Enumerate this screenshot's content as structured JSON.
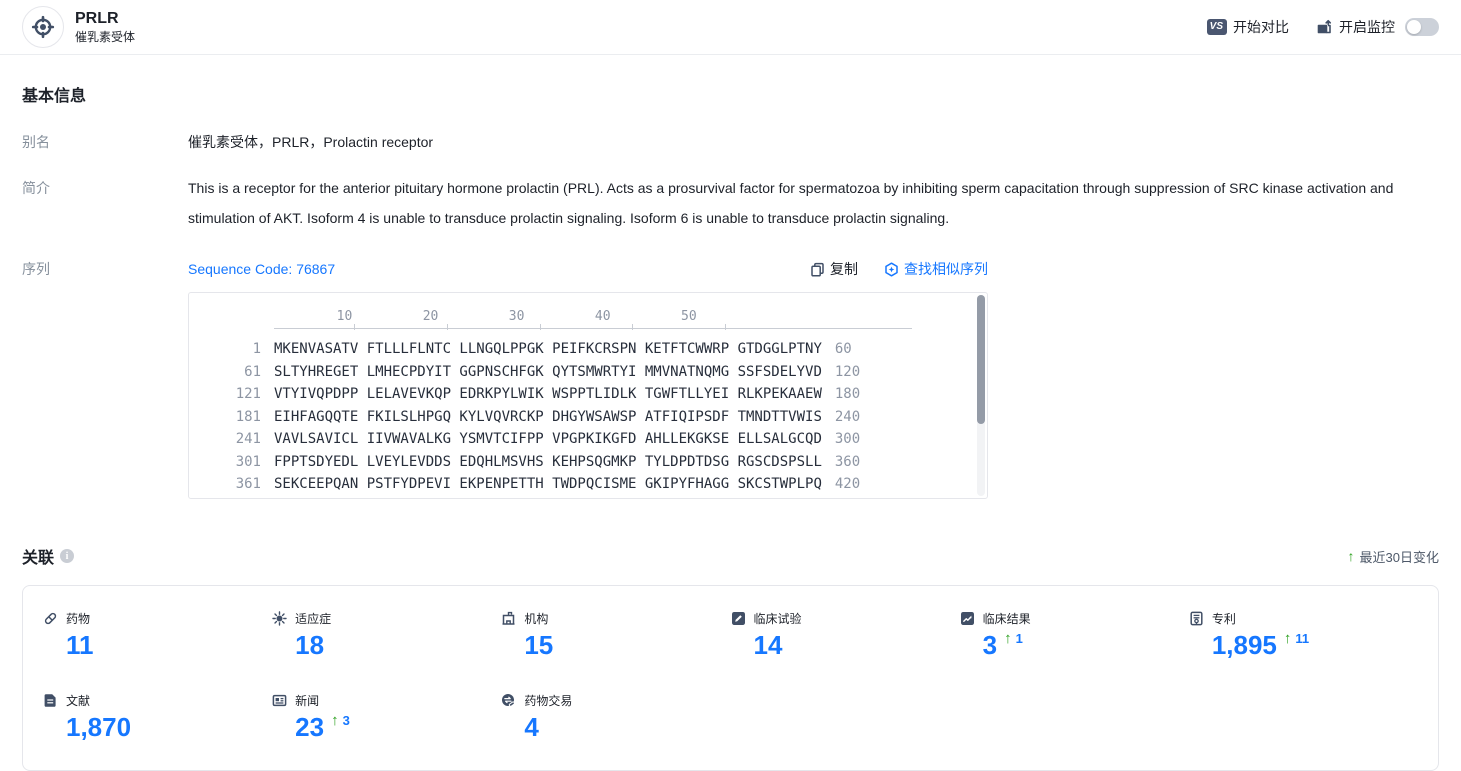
{
  "colors": {
    "accent_blue": "#1677ff",
    "navy": "#414f66",
    "green": "#2ea121",
    "badge_bg": "#4a5670"
  },
  "header": {
    "title": "PRLR",
    "subtitle": "催乳素受体",
    "compare_badge": "VS",
    "compare_label": "开始对比",
    "monitor_label": "开启监控",
    "monitor_toggle_state": "off"
  },
  "basic_info": {
    "section_title": "基本信息",
    "alias_label": "别名",
    "alias_value": "催乳素受体，PRLR，Prolactin receptor",
    "intro_label": "简介",
    "intro_value": "This is a receptor for the anterior pituitary hormone prolactin (PRL). Acts as a prosurvival factor for spermatozoa by inhibiting sperm capacitation through suppression of SRC kinase activation and stimulation of AKT. Isoform 4 is unable to transduce prolactin signaling. Isoform 6 is unable to transduce prolactin signaling.",
    "sequence_label": "序列",
    "sequence_code_link": "Sequence Code: 76867",
    "copy_label": "复制",
    "find_similar_label": "查找相似序列"
  },
  "sequence_viewer": {
    "ruler_ticks": [
      "10",
      "20",
      "30",
      "40",
      "50"
    ],
    "rows": [
      {
        "start": "1",
        "seq": "MKENVASATV FTLLLFLNTC LLNGQLPPGK PEIFKCRSPN KETFTCWWRP GTDGGLPTNY",
        "end": "60"
      },
      {
        "start": "61",
        "seq": "SLTYHREGET LMHECPDYIT GGPNSCHFGK QYTSMWRTYI MMVNATNQMG SSFSDELYVD",
        "end": "120"
      },
      {
        "start": "121",
        "seq": "VTYIVQPDPP LELAVEVKQP EDRKPYLWIK WSPPTLIDLK TGWFTLLYEI RLKPEKAAEW",
        "end": "180"
      },
      {
        "start": "181",
        "seq": "EIHFAGQQTE FKILSLHPGQ KYLVQVRCKP DHGYWSAWSP ATFIQIPSDF TMNDTTVWIS",
        "end": "240"
      },
      {
        "start": "241",
        "seq": "VAVLSAVICL IIVWAVALKG YSMVTCIFPP VPGPKIKGFD AHLLEKGKSE ELLSALGCQD",
        "end": "300"
      },
      {
        "start": "301",
        "seq": "FPPTSDYEDL LVEYLEVDDS EDQHLMSVHS KEHPSQGMKP TYLDPDTDSG RGSCDSPSLL",
        "end": "360"
      },
      {
        "start": "361",
        "seq": "SEKCEEPQAN PSTFYDPEVI EKPENPETTH TWDPQCISME GKIPYFHAGG SKCSTWPLPQ",
        "end": "420"
      }
    ]
  },
  "associations": {
    "section_title": "关联",
    "recent_change_label": "最近30日变化",
    "stats": [
      {
        "icon": "drug-icon",
        "label": "药物",
        "value": "11"
      },
      {
        "icon": "indication-icon",
        "label": "适应症",
        "value": "18"
      },
      {
        "icon": "organization-icon",
        "label": "机构",
        "value": "15"
      },
      {
        "icon": "clinical-trial-icon",
        "label": "临床试验",
        "value": "14"
      },
      {
        "icon": "clinical-result-icon",
        "label": "临床结果",
        "value": "3",
        "change": "1"
      },
      {
        "icon": "patent-icon",
        "label": "专利",
        "value": "1,895",
        "change": "11"
      },
      {
        "icon": "literature-icon",
        "label": "文献",
        "value": "1,870"
      },
      {
        "icon": "news-icon",
        "label": "新闻",
        "value": "23",
        "change": "3"
      },
      {
        "icon": "drug-deal-icon",
        "label": "药物交易",
        "value": "4"
      }
    ]
  }
}
